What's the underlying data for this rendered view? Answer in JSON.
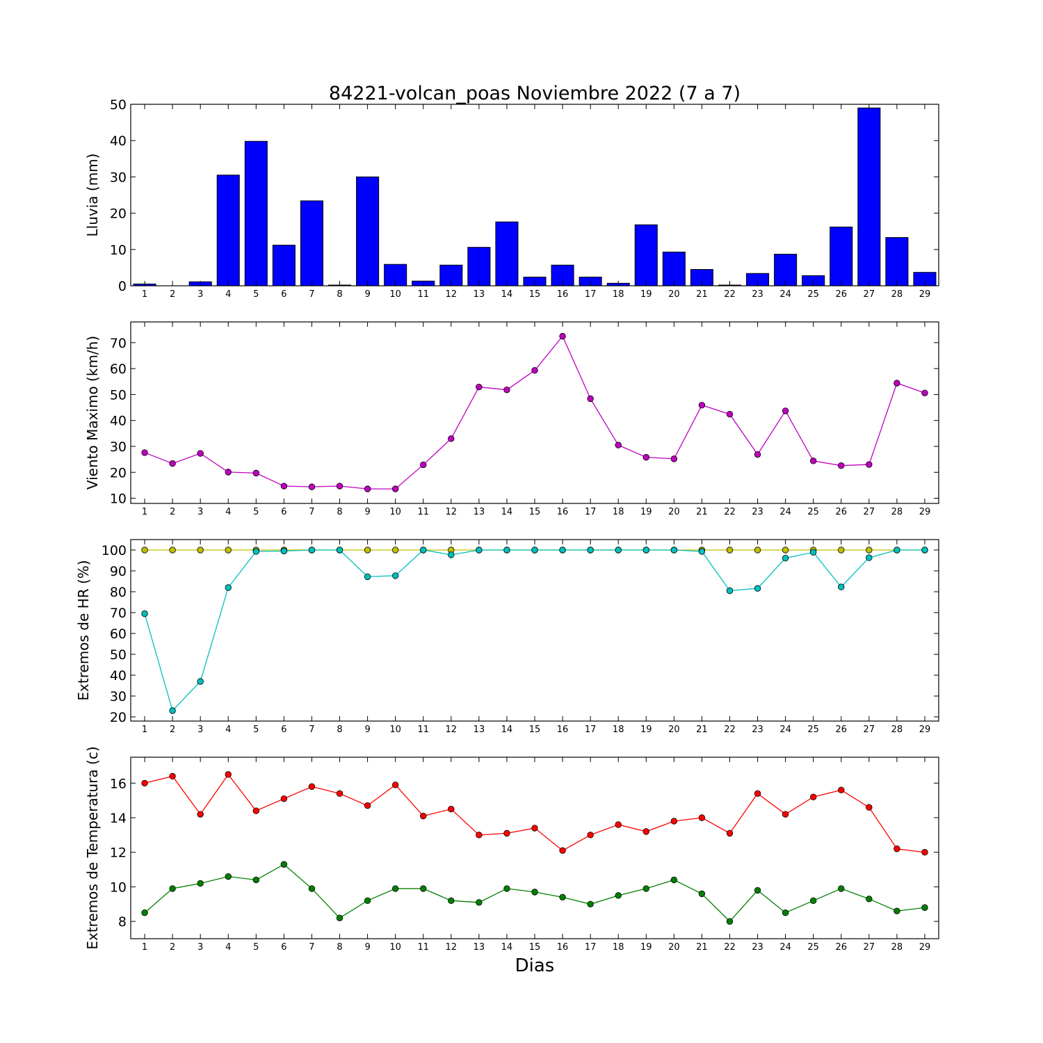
{
  "chart_data": [
    {
      "type": "bar",
      "title": "84221-volcan_poas Noviembre 2022  (7 a 7)",
      "xlabel": "",
      "ylabel": "Lluvia (mm)",
      "categories": [
        "1",
        "2",
        "3",
        "4",
        "5",
        "6",
        "7",
        "8",
        "9",
        "10",
        "11",
        "12",
        "13",
        "14",
        "15",
        "16",
        "17",
        "18",
        "19",
        "20",
        "21",
        "22",
        "23",
        "24",
        "25",
        "26",
        "27",
        "28",
        "29"
      ],
      "values": [
        0.5,
        0.0,
        1.1,
        30.5,
        39.8,
        11.2,
        23.4,
        0.2,
        30.0,
        5.9,
        1.3,
        5.7,
        10.6,
        17.6,
        2.4,
        5.7,
        2.4,
        0.7,
        16.8,
        9.3,
        4.5,
        0.2,
        3.4,
        8.7,
        2.8,
        16.2,
        49.0,
        13.3,
        3.7
      ],
      "ylim": [
        0,
        50
      ],
      "yticks": [
        0,
        10,
        20,
        30,
        40,
        50
      ],
      "color": "#0000ff"
    },
    {
      "type": "line",
      "title": "",
      "xlabel": "",
      "ylabel": "Viento Maximo (km/h)",
      "categories": [
        "1",
        "2",
        "3",
        "4",
        "5",
        "6",
        "7",
        "8",
        "9",
        "10",
        "11",
        "12",
        "13",
        "14",
        "15",
        "16",
        "17",
        "18",
        "19",
        "20",
        "21",
        "22",
        "23",
        "24",
        "25",
        "26",
        "27",
        "28",
        "29"
      ],
      "series": [
        {
          "color": "#bf00bf",
          "values": [
            27.6,
            23.4,
            27.3,
            20.1,
            19.7,
            14.7,
            14.4,
            14.7,
            13.6,
            13.6,
            22.9,
            33.0,
            52.9,
            51.8,
            59.3,
            72.5,
            48.4,
            30.5,
            25.8,
            25.2,
            45.9,
            42.4,
            26.9,
            43.7,
            24.4,
            22.6,
            23.0,
            54.4,
            50.6
          ]
        }
      ],
      "ylim": [
        8,
        78
      ],
      "yticks": [
        10,
        20,
        30,
        40,
        50,
        60,
        70
      ]
    },
    {
      "type": "line",
      "title": "",
      "xlabel": "",
      "ylabel": "Extremos de HR (%)",
      "categories": [
        "1",
        "2",
        "3",
        "4",
        "5",
        "6",
        "7",
        "8",
        "9",
        "10",
        "11",
        "12",
        "13",
        "14",
        "15",
        "16",
        "17",
        "18",
        "19",
        "20",
        "21",
        "22",
        "23",
        "24",
        "25",
        "26",
        "27",
        "28",
        "29"
      ],
      "series": [
        {
          "color": "#bfbf00",
          "values": [
            100,
            100,
            100,
            100,
            100,
            100,
            100,
            100,
            100,
            100,
            100,
            100,
            100,
            100,
            100,
            100,
            100,
            100,
            100,
            100,
            100,
            100,
            100,
            100,
            100,
            100,
            100,
            100,
            100
          ]
        },
        {
          "color": "#00bfbf",
          "values": [
            69.5,
            23.0,
            37.0,
            82.0,
            99.3,
            99.5,
            100,
            100,
            87.2,
            87.7,
            100,
            97.7,
            100,
            100,
            100,
            100,
            100,
            100,
            100,
            100,
            99.3,
            80.5,
            81.6,
            96.1,
            98.9,
            82.3,
            96.3,
            100,
            100
          ]
        }
      ],
      "ylim": [
        18,
        105
      ],
      "yticks": [
        20,
        30,
        40,
        50,
        60,
        70,
        80,
        90,
        100
      ]
    },
    {
      "type": "line",
      "title": "",
      "xlabel": "Dias",
      "ylabel": "Extremos de Temperatura (c)",
      "categories": [
        "1",
        "2",
        "3",
        "4",
        "5",
        "6",
        "7",
        "8",
        "9",
        "10",
        "11",
        "12",
        "13",
        "14",
        "15",
        "16",
        "17",
        "18",
        "19",
        "20",
        "21",
        "22",
        "23",
        "24",
        "25",
        "26",
        "27",
        "28",
        "29"
      ],
      "series": [
        {
          "color": "#ff0000",
          "values": [
            16.0,
            16.4,
            14.2,
            16.5,
            14.4,
            15.1,
            15.8,
            15.4,
            14.7,
            15.9,
            14.1,
            14.5,
            13.0,
            13.1,
            13.4,
            12.1,
            13.0,
            13.6,
            13.2,
            13.8,
            14.0,
            13.1,
            15.4,
            14.2,
            15.2,
            15.6,
            14.6,
            12.2,
            12.0
          ]
        },
        {
          "color": "#008000",
          "values": [
            8.5,
            9.9,
            10.2,
            10.6,
            10.4,
            11.3,
            9.9,
            8.2,
            9.2,
            9.9,
            9.9,
            9.2,
            9.1,
            9.9,
            9.7,
            9.4,
            9.0,
            9.5,
            9.9,
            10.4,
            9.6,
            8.0,
            9.8,
            8.5,
            9.2,
            9.9,
            9.3,
            8.6,
            8.8
          ]
        }
      ],
      "ylim": [
        7,
        17.5
      ],
      "yticks": [
        8,
        10,
        12,
        14,
        16
      ]
    }
  ]
}
